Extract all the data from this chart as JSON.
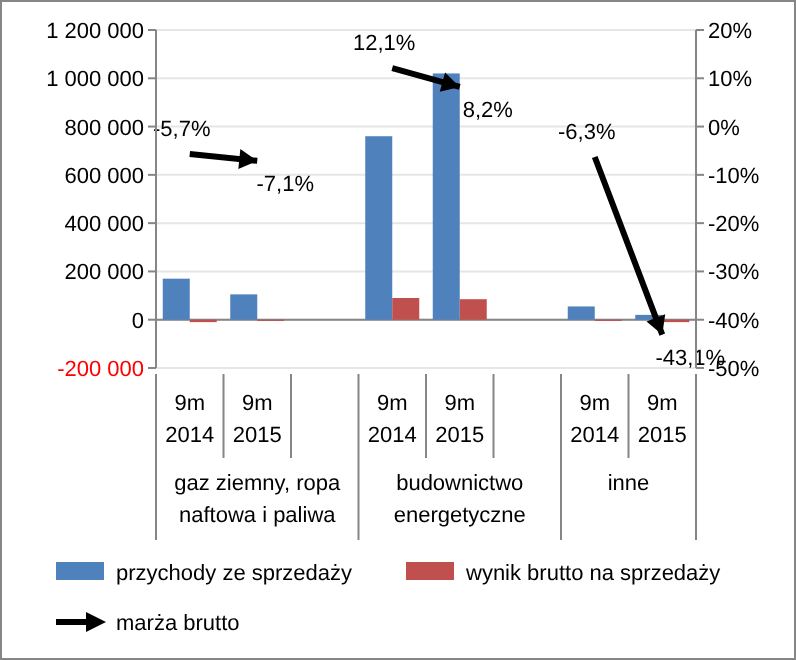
{
  "chart_data": {
    "type": "bar",
    "categories": [
      "9m 2014",
      "9m 2015",
      null,
      "9m 2014",
      "9m 2015",
      null,
      "9m 2014",
      "9m 2015"
    ],
    "series": [
      {
        "name": "przychody ze sprzedaży",
        "color": "#4f81bd",
        "values": [
          170000,
          105000,
          null,
          760000,
          1020000,
          null,
          55000,
          20000
        ]
      },
      {
        "name": "wynik brutto na sprzedaży",
        "color": "#c0504d",
        "values": [
          -10000,
          -5000,
          null,
          90000,
          85000,
          null,
          -5000,
          -10000
        ]
      },
      {
        "name": "marża brutto",
        "type": "line",
        "axis": "y2",
        "color": "#000000",
        "values": [
          -5.7,
          -7.1,
          null,
          12.1,
          8.2,
          null,
          -6.3,
          -43.1
        ],
        "value_labels": [
          "-5,7%",
          "-7,1%",
          null,
          "12,1%",
          "8,2%",
          null,
          "-6,3%",
          "-43,1%"
        ]
      }
    ],
    "ylim": [
      -200000,
      1200000
    ],
    "yticks": [
      {
        "value": -200000,
        "label": "-200 000"
      },
      {
        "value": 0,
        "label": "0"
      },
      {
        "value": 200000,
        "label": "200 000"
      },
      {
        "value": 400000,
        "label": "400 000"
      },
      {
        "value": 600000,
        "label": "600 000"
      },
      {
        "value": 800000,
        "label": "800 000"
      },
      {
        "value": 1000000,
        "label": "1 000 000"
      },
      {
        "value": 1200000,
        "label": "1 200 000"
      }
    ],
    "y2lim": [
      -50,
      20
    ],
    "y2ticks": [
      {
        "value": -50,
        "label": "-50%"
      },
      {
        "value": -40,
        "label": "-40%"
      },
      {
        "value": -30,
        "label": "-30%"
      },
      {
        "value": -20,
        "label": "-20%"
      },
      {
        "value": -10,
        "label": "-10%"
      },
      {
        "value": 0,
        "label": "0%"
      },
      {
        "value": 10,
        "label": "10%"
      },
      {
        "value": 20,
        "label": "20%"
      }
    ],
    "annotations": [
      "gaz ziemny, ropa naftowa i paliwa",
      "budownictwo energetyczne",
      "inne"
    ],
    "grid": "y",
    "legend": "bottom"
  }
}
